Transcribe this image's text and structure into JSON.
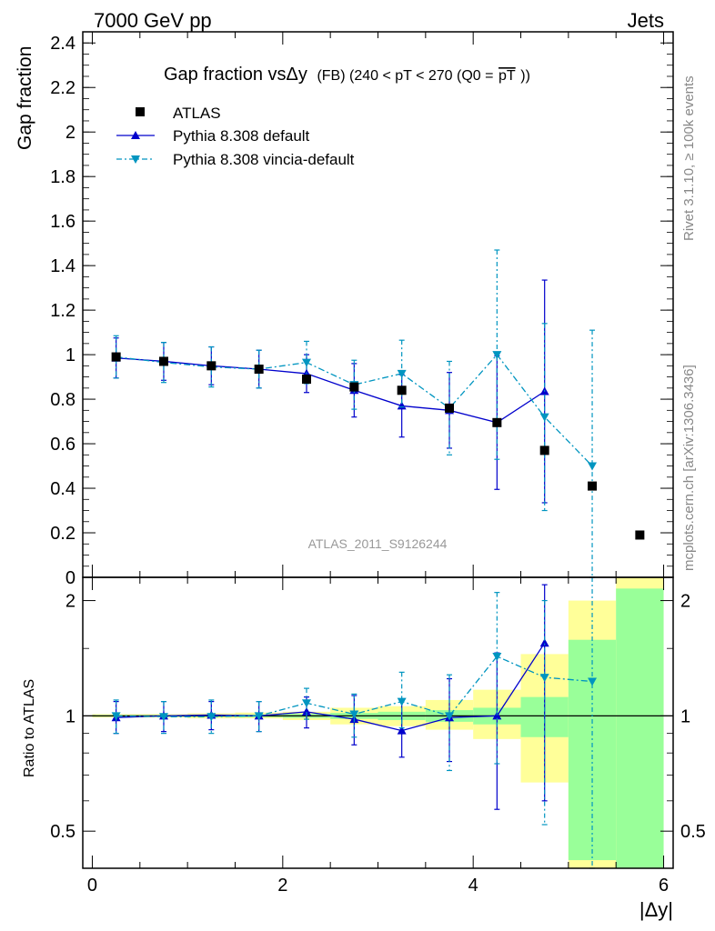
{
  "header": {
    "left": "7000 GeV pp",
    "right": "Jets"
  },
  "side_labels": {
    "rivet": "Rivet 3.1.10, ≥ 100k events",
    "mcplots": "mcplots.cern.ch [arXiv:1306.3436]"
  },
  "watermark": "ATLAS_2011_S9126244",
  "chart_data": [
    {
      "type": "scatter",
      "title_main": "Gap fraction vsΔy",
      "title_small": "(FB)  (240 < pT < 270 (Q0 =",
      "title_overline": "pT",
      "title_end": "))",
      "ylabel": "Gap fraction",
      "xlabel": "|Δy|",
      "xlim": [
        -0.1,
        6.1
      ],
      "ylim": [
        0,
        2.45
      ],
      "yticks": [
        0,
        0.2,
        0.4,
        0.6,
        0.8,
        1,
        1.2,
        1.4,
        1.6,
        1.8,
        2,
        2.2,
        2.4
      ],
      "ytick_labels": [
        "0",
        "0.2",
        "0.4",
        "0.6",
        "0.8",
        "1",
        "1.2",
        "1.4",
        "1.6",
        "1.8",
        "2",
        "2.2",
        "2.4"
      ],
      "legend_position": "top-left",
      "series": [
        {
          "name": "ATLAS",
          "color": "#000000",
          "marker": "square",
          "x": [
            0.25,
            0.75,
            1.25,
            1.75,
            2.25,
            2.75,
            3.25,
            3.75,
            4.25,
            4.75,
            5.25,
            5.75
          ],
          "y": [
            0.99,
            0.97,
            0.95,
            0.935,
            0.89,
            0.855,
            0.84,
            0.76,
            0.695,
            0.57,
            0.41,
            0.19
          ]
        },
        {
          "name": "Pythia 8.308 default",
          "color": "#0000cc",
          "marker": "triangle-up",
          "x": [
            0.25,
            0.75,
            1.25,
            1.75,
            2.25,
            2.75,
            3.25,
            3.75,
            4.25,
            4.75
          ],
          "y": [
            0.985,
            0.97,
            0.95,
            0.935,
            0.915,
            0.84,
            0.77,
            0.75,
            0.695,
            0.835
          ],
          "yerr": [
            0.09,
            0.085,
            0.085,
            0.085,
            0.085,
            0.12,
            0.14,
            0.17,
            0.3,
            0.5
          ]
        },
        {
          "name": "Pythia 8.308 vincia-default",
          "color": "#0095c0",
          "marker": "triangle-down",
          "x": [
            0.25,
            0.75,
            1.25,
            1.75,
            2.25,
            2.75,
            3.25,
            3.75,
            4.25,
            4.75,
            5.25
          ],
          "y": [
            0.99,
            0.965,
            0.945,
            0.935,
            0.965,
            0.865,
            0.915,
            0.76,
            1.0,
            0.72,
            0.5
          ],
          "yerr": [
            0.095,
            0.09,
            0.09,
            0.085,
            0.095,
            0.11,
            0.15,
            0.21,
            0.47,
            0.42,
            0.61
          ]
        }
      ]
    },
    {
      "type": "scatter",
      "ylabel": "Ratio to ATLAS",
      "ylim": [
        0.4,
        2.3
      ],
      "log_scale": true,
      "yticks": [
        0.5,
        1,
        2
      ],
      "ytick_labels": [
        "0.5",
        "1",
        "2"
      ],
      "xticks": [
        0,
        2,
        4,
        6
      ],
      "xtick_labels": [
        "0",
        "2",
        "4",
        "6"
      ],
      "bands": {
        "bins": [
          [
            0,
            0.5
          ],
          [
            0.5,
            1
          ],
          [
            1,
            1.5
          ],
          [
            1.5,
            2
          ],
          [
            2,
            2.5
          ],
          [
            2.5,
            3
          ],
          [
            3,
            3.5
          ],
          [
            3.5,
            4
          ],
          [
            4,
            4.5
          ],
          [
            4.5,
            5
          ],
          [
            5,
            5.5
          ],
          [
            5.5,
            6
          ]
        ],
        "stat_color": "#99ff99",
        "total_color": "#ffff99",
        "stat_half": [
          0.005,
          0.005,
          0.006,
          0.008,
          0.012,
          0.018,
          0.025,
          0.035,
          0.05,
          0.12,
          0.58,
          1.15
        ],
        "total_lo": [
          0.99,
          0.99,
          0.985,
          0.985,
          0.975,
          0.95,
          0.94,
          0.92,
          0.87,
          0.67,
          0.4,
          0.4
        ],
        "total_hi": [
          1.01,
          1.01,
          1.015,
          1.02,
          1.025,
          1.05,
          1.06,
          1.1,
          1.17,
          1.45,
          2.0,
          2.3
        ]
      },
      "series": [
        {
          "name": "Pythia 8.308 default",
          "color": "#0000cc",
          "marker": "triangle-up",
          "x": [
            0.25,
            0.75,
            1.25,
            1.75,
            2.25,
            2.75,
            3.25,
            3.75,
            4.25,
            4.75
          ],
          "y": [
            0.99,
            1.0,
            1.005,
            1.0,
            1.025,
            0.98,
            0.915,
            0.99,
            1.0,
            1.55
          ],
          "ylo": [
            0.9,
            0.91,
            0.92,
            0.91,
            0.93,
            0.84,
            0.78,
            0.76,
            0.57,
            0.6
          ],
          "yhi": [
            1.09,
            1.09,
            1.09,
            1.09,
            1.12,
            1.13,
            1.1,
            1.25,
            1.46,
            2.2
          ]
        },
        {
          "name": "Pythia 8.308 vincia-default",
          "color": "#0095c0",
          "marker": "triangle-down",
          "x": [
            0.25,
            0.75,
            1.25,
            1.75,
            2.25,
            2.75,
            3.25,
            3.75,
            4.25,
            4.75,
            5.25
          ],
          "y": [
            1.0,
            0.995,
            0.995,
            1.0,
            1.08,
            1.01,
            1.09,
            1.0,
            1.43,
            1.26,
            1.23
          ],
          "ylo": [
            0.9,
            0.9,
            0.9,
            0.91,
            0.98,
            0.88,
            0.93,
            0.72,
            0.75,
            0.52,
            0.4
          ],
          "yhi": [
            1.1,
            1.09,
            1.1,
            1.09,
            1.18,
            1.14,
            1.3,
            1.28,
            2.1,
            2.0,
            2.3
          ]
        }
      ]
    }
  ]
}
